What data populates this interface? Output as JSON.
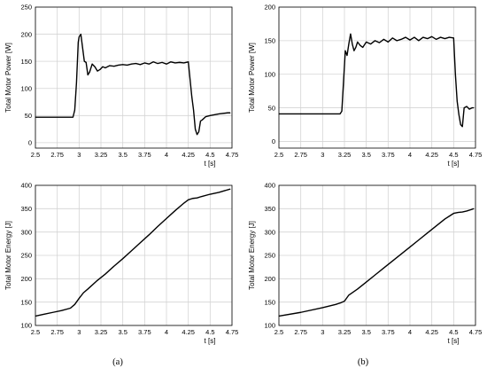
{
  "chart_data": [
    {
      "id": "a-power",
      "type": "line",
      "ylabel": "Total Motor Power [W]",
      "xlabel": "t [s]",
      "xlim": [
        2.5,
        4.75
      ],
      "ylim": [
        -10,
        250
      ],
      "xticks": [
        2.5,
        2.75,
        3,
        3.25,
        3.5,
        3.75,
        4,
        4.25,
        4.5,
        4.75
      ],
      "xtick_labels": [
        "2.5",
        "2.75",
        "3",
        "3.25",
        "3.5",
        "3.75",
        "4",
        "4.25",
        "4.5",
        "4.75"
      ],
      "yticks": [
        0,
        50,
        100,
        150,
        200,
        250
      ],
      "ytick_labels": [
        "0",
        "50",
        "100",
        "150",
        "200",
        "250"
      ],
      "grid": true,
      "series": [
        {
          "x": [
            2.5,
            2.93,
            2.95,
            2.97,
            2.99,
            3.0,
            3.02,
            3.04,
            3.06,
            3.08,
            3.1,
            3.12,
            3.15,
            3.18,
            3.21,
            3.24,
            3.27,
            3.3,
            3.35,
            3.4,
            3.45,
            3.5,
            3.55,
            3.6,
            3.65,
            3.7,
            3.75,
            3.8,
            3.85,
            3.9,
            3.95,
            4.0,
            4.05,
            4.1,
            4.15,
            4.2,
            4.25,
            4.29,
            4.31,
            4.33,
            4.35,
            4.37,
            4.39,
            4.41,
            4.45,
            4.5,
            4.6,
            4.7,
            4.73
          ],
          "y": [
            47,
            47,
            60,
            110,
            185,
            195,
            200,
            175,
            150,
            148,
            125,
            130,
            145,
            140,
            132,
            135,
            140,
            138,
            142,
            141,
            143,
            144,
            143,
            145,
            146,
            144,
            147,
            145,
            149,
            146,
            148,
            145,
            149,
            147,
            148,
            147,
            149,
            85,
            60,
            25,
            15,
            20,
            40,
            42,
            48,
            50,
            53,
            55,
            55
          ]
        }
      ]
    },
    {
      "id": "b-power",
      "type": "line",
      "ylabel": "Total Motor Power [W]",
      "xlabel": "t [s]",
      "xlim": [
        2.5,
        4.75
      ],
      "ylim": [
        -10,
        200
      ],
      "xticks": [
        2.5,
        2.75,
        3,
        3.25,
        3.5,
        3.75,
        4,
        4.25,
        4.5,
        4.75
      ],
      "xtick_labels": [
        "2.5",
        "2.75",
        "3",
        "3.25",
        "3.5",
        "3.75",
        "4",
        "4.25",
        "4.5",
        "4.75"
      ],
      "yticks": [
        0,
        50,
        100,
        150,
        200
      ],
      "ytick_labels": [
        "0",
        "50",
        "100",
        "150",
        "200"
      ],
      "grid": true,
      "series": [
        {
          "x": [
            2.5,
            3.2,
            3.22,
            3.24,
            3.26,
            3.28,
            3.3,
            3.32,
            3.34,
            3.36,
            3.38,
            3.4,
            3.43,
            3.46,
            3.5,
            3.55,
            3.6,
            3.65,
            3.7,
            3.75,
            3.8,
            3.85,
            3.9,
            3.95,
            4.0,
            4.05,
            4.1,
            4.15,
            4.2,
            4.25,
            4.3,
            4.35,
            4.4,
            4.45,
            4.5,
            4.52,
            4.54,
            4.56,
            4.58,
            4.6,
            4.62,
            4.65,
            4.68,
            4.71,
            4.73
          ],
          "y": [
            41,
            41,
            45,
            90,
            135,
            128,
            145,
            160,
            145,
            135,
            140,
            148,
            143,
            140,
            148,
            145,
            150,
            147,
            152,
            148,
            154,
            150,
            152,
            155,
            151,
            155,
            150,
            155,
            153,
            156,
            152,
            155,
            153,
            155,
            154,
            100,
            60,
            40,
            25,
            22,
            50,
            52,
            48,
            50,
            50
          ]
        }
      ]
    },
    {
      "id": "a-energy",
      "type": "line",
      "ylabel": "Total Motor Energy [J]",
      "xlabel": "t [s]",
      "xlim": [
        2.5,
        4.75
      ],
      "ylim": [
        100,
        400
      ],
      "xticks": [
        2.5,
        2.75,
        3,
        3.25,
        3.5,
        3.75,
        4,
        4.25,
        4.5,
        4.75
      ],
      "xtick_labels": [
        "2.5",
        "2.75",
        "3",
        "3.25",
        "3.5",
        "3.75",
        "4",
        "4.25",
        "4.5",
        "4.75"
      ],
      "yticks": [
        100,
        150,
        200,
        250,
        300,
        350,
        400
      ],
      "ytick_labels": [
        "100",
        "150",
        "200",
        "250",
        "300",
        "350",
        "400"
      ],
      "grid": true,
      "series": [
        {
          "x": [
            2.5,
            2.6,
            2.7,
            2.8,
            2.9,
            2.95,
            3.0,
            3.05,
            3.1,
            3.2,
            3.3,
            3.4,
            3.5,
            3.6,
            3.7,
            3.8,
            3.9,
            4.0,
            4.1,
            4.2,
            4.25,
            4.3,
            4.35,
            4.4,
            4.5,
            4.6,
            4.73
          ],
          "y": [
            120,
            124,
            128,
            132,
            137,
            145,
            158,
            170,
            178,
            195,
            210,
            227,
            243,
            260,
            277,
            294,
            312,
            329,
            346,
            362,
            369,
            372,
            373,
            376,
            381,
            385,
            392
          ]
        }
      ]
    },
    {
      "id": "b-energy",
      "type": "line",
      "ylabel": "Total Motor Energy [J]",
      "xlabel": "t [s]",
      "xlim": [
        2.5,
        4.75
      ],
      "ylim": [
        100,
        400
      ],
      "xticks": [
        2.5,
        2.75,
        3,
        3.25,
        3.5,
        3.75,
        4,
        4.25,
        4.5,
        4.75
      ],
      "xtick_labels": [
        "2.5",
        "2.75",
        "3",
        "3.25",
        "3.5",
        "3.75",
        "4",
        "4.25",
        "4.5",
        "4.75"
      ],
      "yticks": [
        100,
        150,
        200,
        250,
        300,
        350,
        400
      ],
      "ytick_labels": [
        "100",
        "150",
        "200",
        "250",
        "300",
        "350",
        "400"
      ],
      "grid": true,
      "series": [
        {
          "x": [
            2.5,
            2.75,
            3.0,
            3.15,
            3.2,
            3.25,
            3.3,
            3.4,
            3.5,
            3.6,
            3.7,
            3.8,
            3.9,
            4.0,
            4.1,
            4.2,
            4.3,
            4.4,
            4.5,
            4.55,
            4.6,
            4.65,
            4.7,
            4.73
          ],
          "y": [
            120,
            128,
            138,
            145,
            148,
            152,
            165,
            178,
            193,
            208,
            223,
            238,
            253,
            268,
            283,
            298,
            313,
            328,
            340,
            342,
            343,
            345,
            348,
            350
          ]
        }
      ]
    }
  ],
  "panel_labels": {
    "a": "(a)",
    "b": "(b)"
  }
}
